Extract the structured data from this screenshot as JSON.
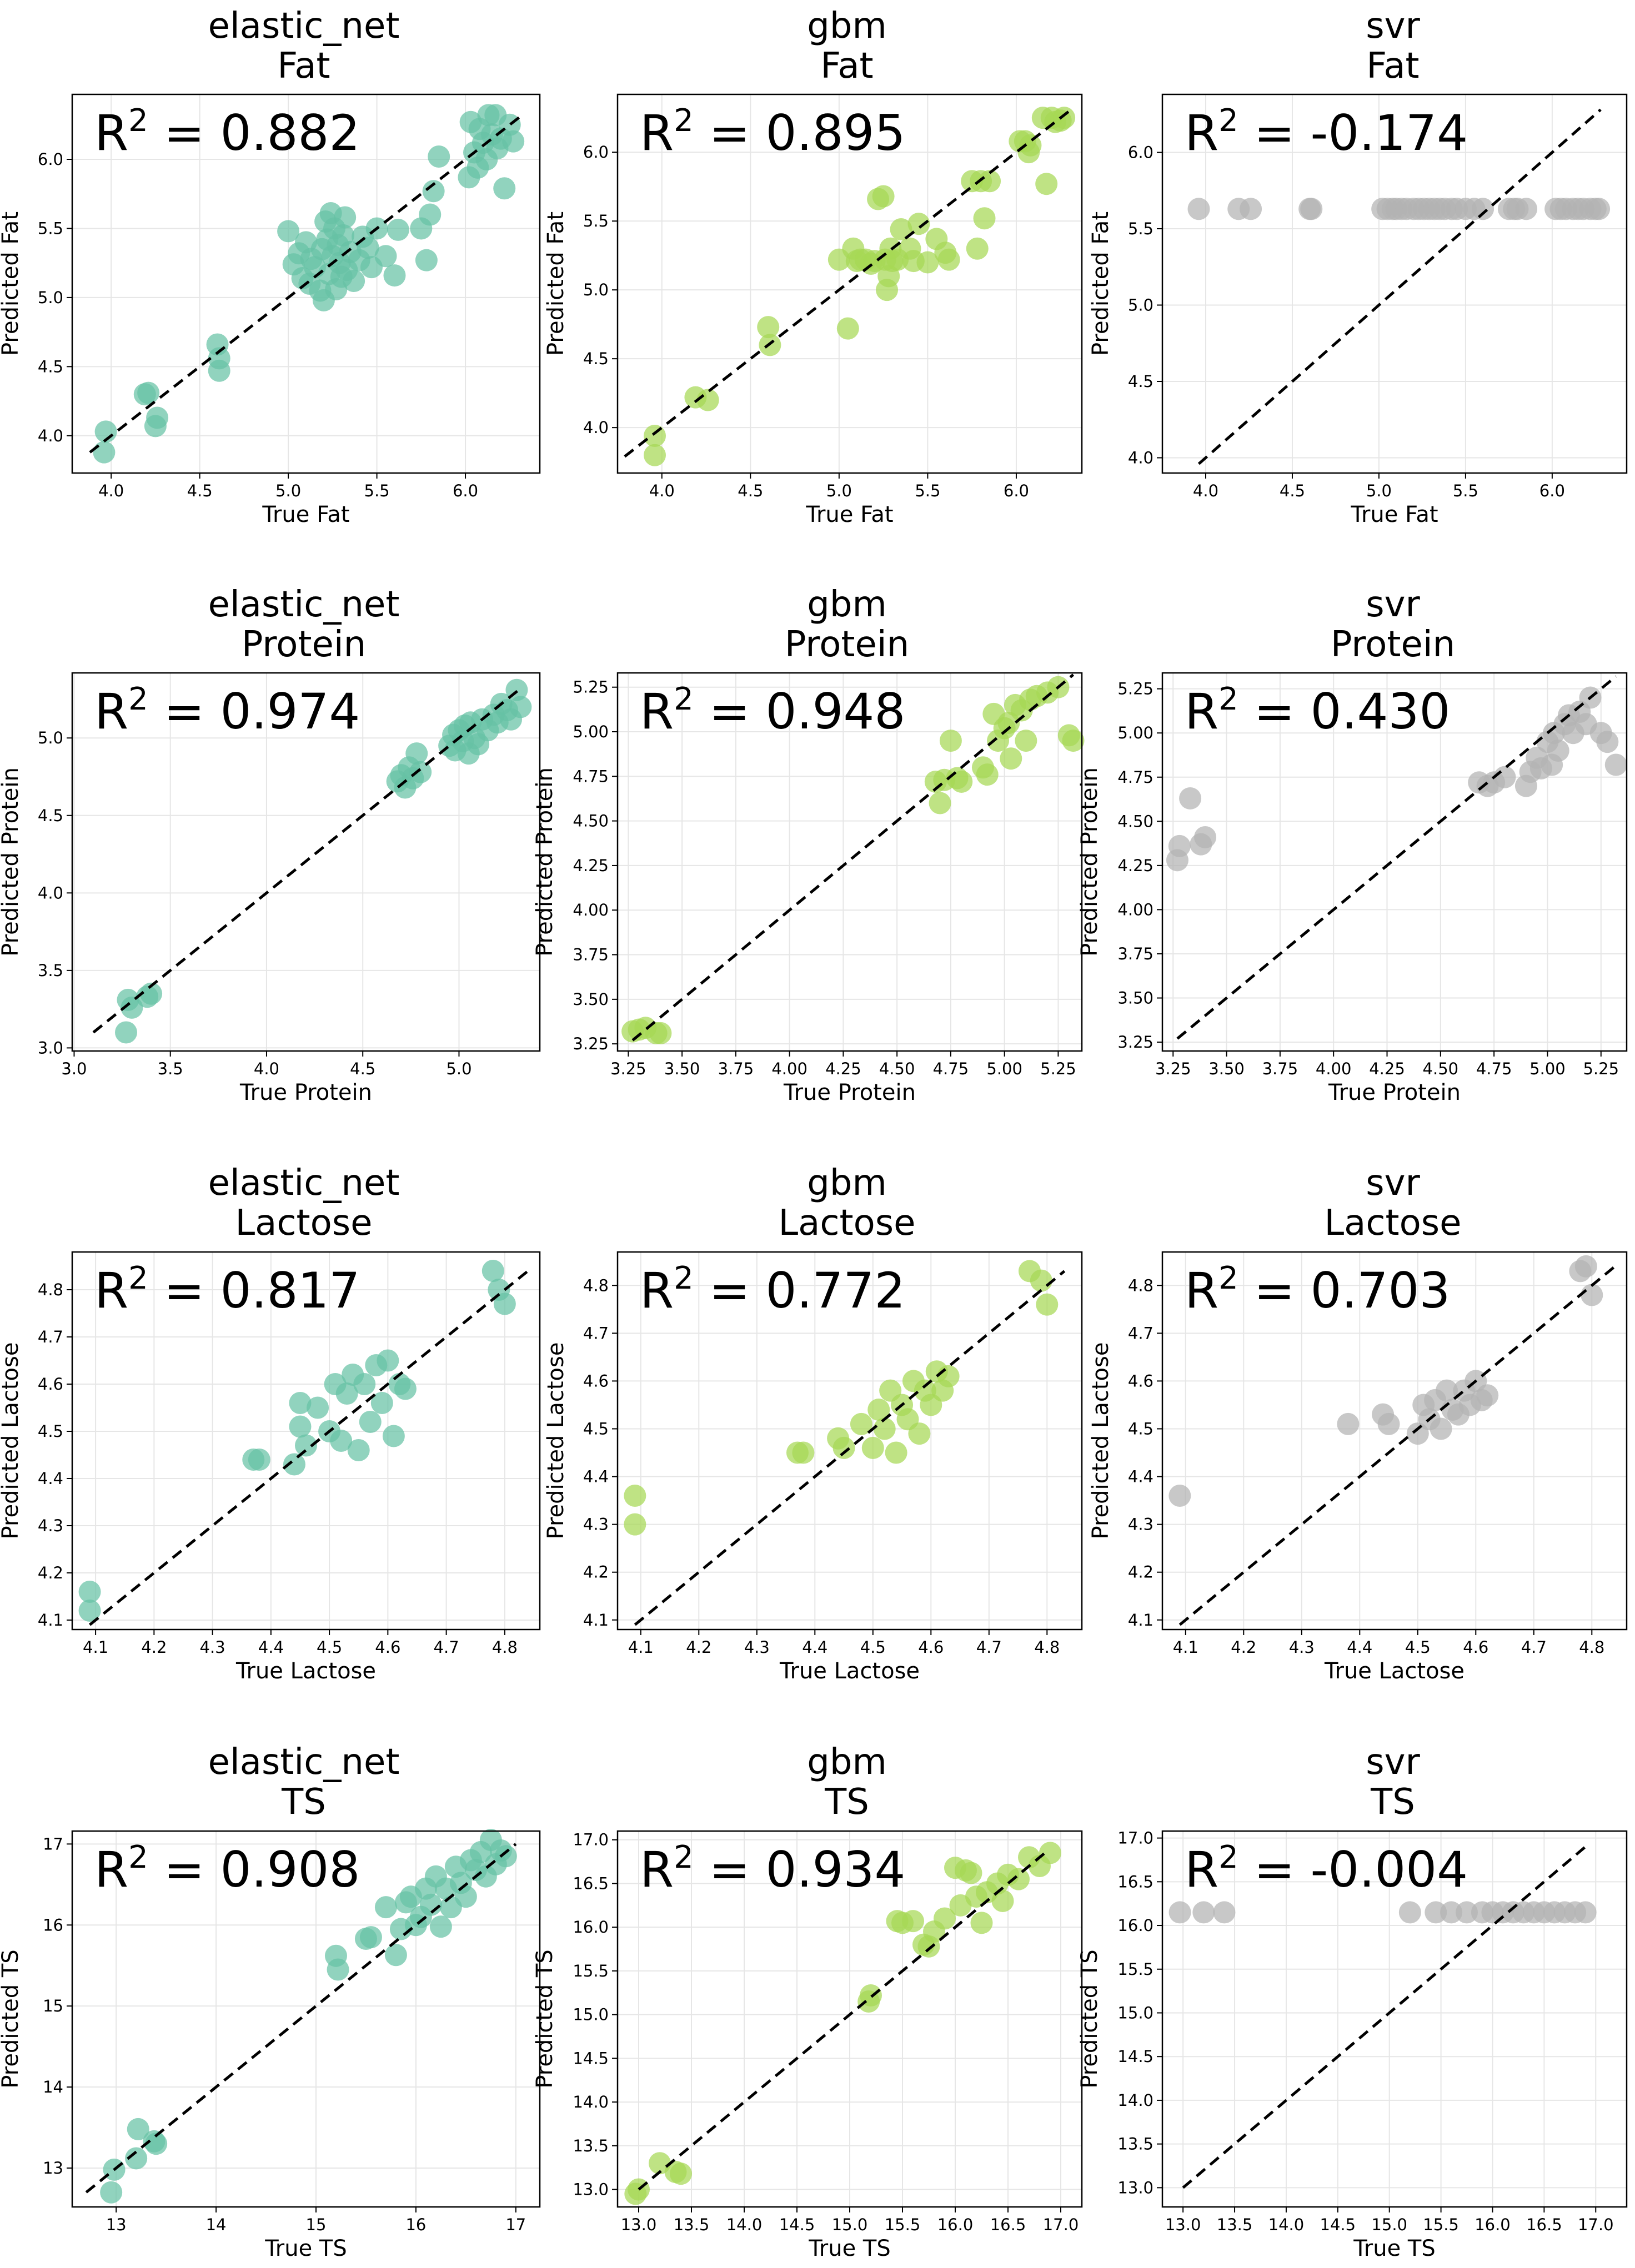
{
  "colors": {
    "elastic_net": "#66c2a5",
    "gbm": "#a6d854",
    "svr": "#b3b3b3",
    "frame": "#000000",
    "grid": "#e6e6e6",
    "identity_line": "#000000"
  },
  "chart_data": [
    {
      "type": "scatter",
      "model": "elastic_net",
      "target": "Fat",
      "xlabel": "True Fat",
      "ylabel": "Predicted Fat",
      "r2": "0.882",
      "xlim": [
        3.78,
        6.42
      ],
      "ylim": [
        3.73,
        6.47
      ],
      "xticks": [
        "4.0",
        "4.5",
        "5.0",
        "5.5",
        "6.0"
      ],
      "yticks": [
        "4.0",
        "4.5",
        "5.0",
        "5.5",
        "6.0"
      ],
      "line": [
        3.88,
        6.32
      ],
      "grid": true,
      "x": [
        3.96,
        3.97,
        4.19,
        4.21,
        4.25,
        4.26,
        4.6,
        4.61,
        4.61,
        5.0,
        5.03,
        5.06,
        5.08,
        5.1,
        5.12,
        5.13,
        5.15,
        5.18,
        5.19,
        5.2,
        5.21,
        5.22,
        5.23,
        5.24,
        5.25,
        5.26,
        5.27,
        5.28,
        5.29,
        5.3,
        5.31,
        5.32,
        5.33,
        5.35,
        5.37,
        5.4,
        5.42,
        5.45,
        5.47,
        5.5,
        5.55,
        5.6,
        5.62,
        5.75,
        5.78,
        5.8,
        5.82,
        5.85,
        6.02,
        6.03,
        6.05,
        6.07,
        6.08,
        6.1,
        6.12,
        6.13,
        6.15,
        6.17,
        6.18,
        6.2,
        6.22,
        6.25,
        6.27
      ],
      "y": [
        3.88,
        4.03,
        4.3,
        4.31,
        4.07,
        4.13,
        4.66,
        4.47,
        4.56,
        5.48,
        5.24,
        5.32,
        5.14,
        5.4,
        5.1,
        5.28,
        5.22,
        5.05,
        5.35,
        4.98,
        5.55,
        5.42,
        5.17,
        5.61,
        5.3,
        5.5,
        5.06,
        5.38,
        5.25,
        5.15,
        5.45,
        5.58,
        5.2,
        5.33,
        5.12,
        5.27,
        5.44,
        5.36,
        5.22,
        5.5,
        5.3,
        5.16,
        5.49,
        5.5,
        5.27,
        5.6,
        5.77,
        6.02,
        5.87,
        6.27,
        6.05,
        5.94,
        6.22,
        6.12,
        6.0,
        6.32,
        6.18,
        6.32,
        6.08,
        6.15,
        5.79,
        6.25,
        6.13
      ]
    },
    {
      "type": "scatter",
      "model": "gbm",
      "target": "Fat",
      "xlabel": "True Fat",
      "ylabel": "Predicted Fat",
      "r2": "0.895",
      "xlim": [
        3.75,
        6.37
      ],
      "ylim": [
        3.67,
        6.42
      ],
      "xticks": [
        "4.0",
        "4.5",
        "5.0",
        "5.5",
        "6.0"
      ],
      "yticks": [
        "4.0",
        "4.5",
        "5.0",
        "5.5",
        "6.0"
      ],
      "line": [
        3.79,
        6.3
      ],
      "grid": true,
      "x": [
        3.96,
        3.96,
        4.19,
        4.26,
        4.6,
        4.61,
        5.0,
        5.05,
        5.08,
        5.1,
        5.12,
        5.15,
        5.18,
        5.2,
        5.22,
        5.25,
        5.26,
        5.27,
        5.28,
        5.29,
        5.3,
        5.33,
        5.35,
        5.4,
        5.42,
        5.45,
        5.5,
        5.55,
        5.6,
        5.62,
        5.75,
        5.78,
        5.8,
        5.82,
        5.85,
        6.02,
        6.05,
        6.07,
        6.08,
        6.15,
        6.17,
        6.2,
        6.22,
        6.25,
        6.27
      ],
      "y": [
        3.8,
        3.94,
        4.22,
        4.2,
        4.73,
        4.6,
        5.22,
        4.72,
        5.3,
        5.21,
        5.22,
        5.22,
        5.19,
        5.21,
        5.66,
        5.68,
        5.22,
        5.0,
        5.1,
        5.3,
        5.21,
        5.22,
        5.44,
        5.3,
        5.21,
        5.48,
        5.2,
        5.37,
        5.27,
        5.22,
        5.79,
        5.3,
        5.79,
        5.52,
        5.79,
        6.08,
        6.08,
        6.0,
        6.05,
        6.25,
        5.77,
        6.25,
        6.22,
        6.23,
        6.25
      ]
    },
    {
      "type": "scatter",
      "model": "svr",
      "target": "Fat",
      "xlabel": "True Fat",
      "ylabel": "Predicted Fat",
      "r2": "-0.174",
      "xlim": [
        3.75,
        6.43
      ],
      "ylim": [
        3.9,
        6.38
      ],
      "xticks": [
        "4.0",
        "4.5",
        "5.0",
        "5.5",
        "6.0"
      ],
      "yticks": [
        "4.0",
        "4.5",
        "5.0",
        "5.5",
        "6.0"
      ],
      "line": [
        3.96,
        6.28
      ],
      "grid": true,
      "x": [
        3.96,
        4.19,
        4.26,
        4.6,
        4.61,
        5.02,
        5.05,
        5.08,
        5.1,
        5.13,
        5.16,
        5.2,
        5.23,
        5.26,
        5.29,
        5.32,
        5.35,
        5.38,
        5.42,
        5.45,
        5.5,
        5.55,
        5.6,
        5.75,
        5.78,
        5.8,
        5.85,
        6.02,
        6.05,
        6.08,
        6.12,
        6.15,
        6.18,
        6.22,
        6.25,
        6.27
      ],
      "y": [
        5.63,
        5.63,
        5.63,
        5.63,
        5.63,
        5.63,
        5.63,
        5.63,
        5.63,
        5.63,
        5.63,
        5.63,
        5.63,
        5.63,
        5.63,
        5.63,
        5.63,
        5.63,
        5.63,
        5.63,
        5.63,
        5.63,
        5.63,
        5.63,
        5.63,
        5.63,
        5.63,
        5.63,
        5.63,
        5.63,
        5.63,
        5.63,
        5.63,
        5.63,
        5.63,
        5.63
      ]
    },
    {
      "type": "scatter",
      "model": "elastic_net",
      "target": "Protein",
      "xlabel": "True Protein",
      "ylabel": "Predicted Protein",
      "r2": "0.974",
      "xlim": [
        2.99,
        5.42
      ],
      "ylim": [
        2.98,
        5.42
      ],
      "xticks": [
        "3.0",
        "3.5",
        "4.0",
        "4.5",
        "5.0"
      ],
      "yticks": [
        "3.0",
        "3.5",
        "4.0",
        "4.5",
        "5.0"
      ],
      "line": [
        3.1,
        5.32
      ],
      "grid": true,
      "x": [
        3.27,
        3.28,
        3.3,
        3.38,
        3.4,
        4.68,
        4.7,
        4.72,
        4.74,
        4.76,
        4.78,
        4.8,
        4.95,
        4.97,
        4.98,
        5.0,
        5.02,
        5.03,
        5.05,
        5.06,
        5.08,
        5.1,
        5.12,
        5.15,
        5.18,
        5.2,
        5.22,
        5.25,
        5.27,
        5.3,
        5.32
      ],
      "y": [
        3.1,
        3.31,
        3.26,
        3.33,
        3.35,
        4.72,
        4.76,
        4.68,
        4.81,
        4.74,
        4.9,
        4.78,
        4.95,
        5.02,
        4.92,
        5.05,
        4.98,
        5.08,
        4.9,
        5.1,
        5.0,
        4.96,
        5.12,
        5.05,
        5.15,
        5.1,
        5.22,
        5.18,
        5.12,
        5.31,
        5.2
      ]
    },
    {
      "type": "scatter",
      "model": "gbm",
      "target": "Protein",
      "xlabel": "True Protein",
      "ylabel": "Predicted Protein",
      "r2": "0.948",
      "xlim": [
        3.2,
        5.36
      ],
      "ylim": [
        3.21,
        5.33
      ],
      "xticks": [
        "3.25",
        "3.50",
        "3.75",
        "4.00",
        "4.25",
        "4.50",
        "4.75",
        "5.00",
        "5.25"
      ],
      "yticks": [
        "3.25",
        "3.50",
        "3.75",
        "4.00",
        "4.25",
        "4.50",
        "4.75",
        "5.00",
        "5.25"
      ],
      "line": [
        3.27,
        5.32
      ],
      "grid": true,
      "x": [
        3.27,
        3.3,
        3.33,
        3.38,
        3.4,
        4.68,
        4.7,
        4.72,
        4.75,
        4.78,
        4.8,
        4.9,
        4.92,
        4.95,
        4.97,
        5.0,
        5.02,
        5.03,
        5.05,
        5.08,
        5.1,
        5.12,
        5.15,
        5.2,
        5.25,
        5.3,
        5.32
      ],
      "y": [
        3.32,
        3.33,
        3.34,
        3.31,
        3.31,
        4.72,
        4.6,
        4.73,
        4.95,
        4.74,
        4.72,
        4.8,
        4.76,
        5.1,
        4.95,
        5.02,
        5.05,
        4.85,
        5.15,
        5.12,
        4.95,
        5.18,
        5.2,
        5.22,
        5.25,
        4.98,
        4.95
      ]
    },
    {
      "type": "scatter",
      "model": "svr",
      "target": "Protein",
      "xlabel": "True Protein",
      "ylabel": "Predicted Protein",
      "r2": "0.430",
      "xlim": [
        3.2,
        5.37
      ],
      "ylim": [
        3.2,
        5.34
      ],
      "xticks": [
        "3.25",
        "3.50",
        "3.75",
        "4.00",
        "4.25",
        "4.50",
        "4.75",
        "5.00",
        "5.25"
      ],
      "yticks": [
        "3.25",
        "3.50",
        "3.75",
        "4.00",
        "4.25",
        "4.50",
        "4.75",
        "5.00",
        "5.25"
      ],
      "line": [
        3.27,
        5.32
      ],
      "grid": true,
      "x": [
        3.27,
        3.28,
        3.33,
        3.38,
        3.4,
        4.68,
        4.72,
        4.75,
        4.8,
        4.9,
        4.92,
        4.95,
        4.97,
        5.0,
        5.02,
        5.03,
        5.05,
        5.08,
        5.1,
        5.12,
        5.15,
        5.18,
        5.2,
        5.25,
        5.28,
        5.32
      ],
      "y": [
        4.28,
        4.36,
        4.63,
        4.37,
        4.41,
        4.72,
        4.7,
        4.72,
        4.75,
        4.7,
        4.78,
        4.86,
        4.8,
        4.95,
        4.82,
        5.0,
        4.9,
        5.05,
        5.1,
        5.0,
        5.12,
        5.05,
        5.2,
        5.0,
        4.95,
        4.82
      ]
    },
    {
      "type": "scatter",
      "model": "elastic_net",
      "target": "Lactose",
      "xlabel": "True Lactose",
      "ylabel": "Predicted Lactose",
      "r2": "0.817",
      "xlim": [
        4.06,
        4.86
      ],
      "ylim": [
        4.08,
        4.88
      ],
      "xticks": [
        "4.1",
        "4.2",
        "4.3",
        "4.4",
        "4.5",
        "4.6",
        "4.7",
        "4.8"
      ],
      "yticks": [
        "4.1",
        "4.2",
        "4.3",
        "4.4",
        "4.5",
        "4.6",
        "4.7",
        "4.8"
      ],
      "line": [
        4.09,
        4.84
      ],
      "grid": true,
      "x": [
        4.09,
        4.09,
        4.37,
        4.38,
        4.44,
        4.45,
        4.45,
        4.46,
        4.48,
        4.5,
        4.51,
        4.52,
        4.53,
        4.54,
        4.55,
        4.56,
        4.57,
        4.58,
        4.59,
        4.6,
        4.61,
        4.62,
        4.63,
        4.78,
        4.79,
        4.8
      ],
      "y": [
        4.12,
        4.16,
        4.44,
        4.44,
        4.43,
        4.56,
        4.51,
        4.47,
        4.55,
        4.5,
        4.6,
        4.48,
        4.58,
        4.62,
        4.46,
        4.6,
        4.52,
        4.64,
        4.56,
        4.65,
        4.49,
        4.6,
        4.59,
        4.84,
        4.8,
        4.77
      ]
    },
    {
      "type": "scatter",
      "model": "gbm",
      "target": "Lactose",
      "xlabel": "True Lactose",
      "ylabel": "Predicted Lactose",
      "r2": "0.772",
      "xlim": [
        4.06,
        4.86
      ],
      "ylim": [
        4.08,
        4.87
      ],
      "xticks": [
        "4.1",
        "4.2",
        "4.3",
        "4.4",
        "4.5",
        "4.6",
        "4.7",
        "4.8"
      ],
      "yticks": [
        "4.1",
        "4.2",
        "4.3",
        "4.4",
        "4.5",
        "4.6",
        "4.7",
        "4.8"
      ],
      "line": [
        4.09,
        4.83
      ],
      "grid": true,
      "x": [
        4.09,
        4.09,
        4.37,
        4.38,
        4.44,
        4.45,
        4.48,
        4.5,
        4.51,
        4.52,
        4.53,
        4.54,
        4.55,
        4.56,
        4.57,
        4.58,
        4.59,
        4.6,
        4.61,
        4.62,
        4.63,
        4.77,
        4.79,
        4.8
      ],
      "y": [
        4.36,
        4.3,
        4.45,
        4.45,
        4.48,
        4.46,
        4.51,
        4.46,
        4.54,
        4.5,
        4.58,
        4.45,
        4.55,
        4.52,
        4.6,
        4.49,
        4.58,
        4.55,
        4.62,
        4.58,
        4.61,
        4.83,
        4.81,
        4.76
      ]
    },
    {
      "type": "scatter",
      "model": "svr",
      "target": "Lactose",
      "xlabel": "True Lactose",
      "ylabel": "Predicted Lactose",
      "r2": "0.703",
      "xlim": [
        4.06,
        4.86
      ],
      "ylim": [
        4.08,
        4.87
      ],
      "xticks": [
        "4.1",
        "4.2",
        "4.3",
        "4.4",
        "4.5",
        "4.6",
        "4.7",
        "4.8"
      ],
      "yticks": [
        "4.1",
        "4.2",
        "4.3",
        "4.4",
        "4.5",
        "4.6",
        "4.7",
        "4.8"
      ],
      "line": [
        4.09,
        4.84
      ],
      "grid": true,
      "x": [
        4.09,
        4.38,
        4.44,
        4.45,
        4.5,
        4.51,
        4.52,
        4.53,
        4.54,
        4.55,
        4.56,
        4.57,
        4.58,
        4.59,
        4.6,
        4.61,
        4.62,
        4.78,
        4.79,
        4.8
      ],
      "y": [
        4.36,
        4.51,
        4.53,
        4.51,
        4.49,
        4.55,
        4.52,
        4.56,
        4.5,
        4.58,
        4.54,
        4.53,
        4.58,
        4.55,
        4.6,
        4.56,
        4.57,
        4.83,
        4.84,
        4.78
      ]
    },
    {
      "type": "scatter",
      "model": "elastic_net",
      "target": "TS",
      "xlabel": "True TS",
      "ylabel": "Predicted TS",
      "r2": "0.908",
      "xlim": [
        12.56,
        17.24
      ],
      "ylim": [
        12.52,
        17.16
      ],
      "xticks": [
        "13",
        "14",
        "15",
        "16",
        "17"
      ],
      "yticks": [
        "13",
        "14",
        "15",
        "16",
        "17"
      ],
      "line": [
        12.7,
        17.0
      ],
      "grid": true,
      "x": [
        12.95,
        12.98,
        13.2,
        13.22,
        13.38,
        13.4,
        15.2,
        15.22,
        15.5,
        15.55,
        15.7,
        15.8,
        15.85,
        15.9,
        15.95,
        16.0,
        16.05,
        16.1,
        16.15,
        16.2,
        16.25,
        16.3,
        16.35,
        16.4,
        16.45,
        16.5,
        16.55,
        16.6,
        16.65,
        16.7,
        16.75,
        16.8,
        16.85,
        16.9
      ],
      "y": [
        12.7,
        12.98,
        13.12,
        13.48,
        13.33,
        13.3,
        15.62,
        15.45,
        15.83,
        15.85,
        16.22,
        15.63,
        15.95,
        16.28,
        16.35,
        16.0,
        16.1,
        16.45,
        16.25,
        16.6,
        15.98,
        16.45,
        16.22,
        16.72,
        16.52,
        16.35,
        16.8,
        16.68,
        16.9,
        16.6,
        17.05,
        16.75,
        16.92,
        16.85
      ]
    },
    {
      "type": "scatter",
      "model": "gbm",
      "target": "TS",
      "xlabel": "True TS",
      "ylabel": "Predicted TS",
      "r2": "0.934",
      "xlim": [
        12.8,
        17.2
      ],
      "ylim": [
        12.8,
        17.1
      ],
      "xticks": [
        "13.0",
        "13.5",
        "14.0",
        "14.5",
        "15.0",
        "15.5",
        "16.0",
        "16.5",
        "17.0"
      ],
      "yticks": [
        "13.0",
        "13.5",
        "14.0",
        "14.5",
        "15.0",
        "15.5",
        "16.0",
        "16.5",
        "17.0"
      ],
      "line": [
        13.0,
        16.85
      ],
      "grid": true,
      "x": [
        12.97,
        13.0,
        13.2,
        13.35,
        13.4,
        15.18,
        15.2,
        15.45,
        15.5,
        15.6,
        15.7,
        15.75,
        15.8,
        15.9,
        16.0,
        16.05,
        16.1,
        16.15,
        16.2,
        16.25,
        16.3,
        16.4,
        16.45,
        16.5,
        16.6,
        16.7,
        16.8,
        16.9
      ],
      "y": [
        12.95,
        13.0,
        13.3,
        13.2,
        13.18,
        15.15,
        15.22,
        16.07,
        16.05,
        16.07,
        15.8,
        15.78,
        15.95,
        16.1,
        16.68,
        16.25,
        16.65,
        16.62,
        16.35,
        16.05,
        16.4,
        16.5,
        16.3,
        16.6,
        16.55,
        16.8,
        16.7,
        16.85
      ]
    },
    {
      "type": "scatter",
      "model": "svr",
      "target": "TS",
      "xlabel": "True TS",
      "ylabel": "Predicted TS",
      "r2": "-0.004",
      "xlim": [
        12.8,
        17.3
      ],
      "ylim": [
        12.78,
        17.08
      ],
      "xticks": [
        "13.0",
        "13.5",
        "14.0",
        "14.5",
        "15.0",
        "15.5",
        "16.0",
        "16.5",
        "17.0"
      ],
      "yticks": [
        "13.0",
        "13.5",
        "14.0",
        "14.5",
        "15.0",
        "15.5",
        "16.0",
        "16.5",
        "17.0"
      ],
      "line": [
        13.0,
        16.9
      ],
      "grid": true,
      "x": [
        12.97,
        13.2,
        13.4,
        15.2,
        15.45,
        15.6,
        15.75,
        15.9,
        16.0,
        16.1,
        16.2,
        16.3,
        16.4,
        16.5,
        16.6,
        16.7,
        16.8,
        16.9
      ],
      "y": [
        16.15,
        16.15,
        16.15,
        16.15,
        16.15,
        16.15,
        16.15,
        16.15,
        16.15,
        16.15,
        16.15,
        16.15,
        16.15,
        16.15,
        16.15,
        16.15,
        16.15,
        16.15
      ]
    }
  ]
}
